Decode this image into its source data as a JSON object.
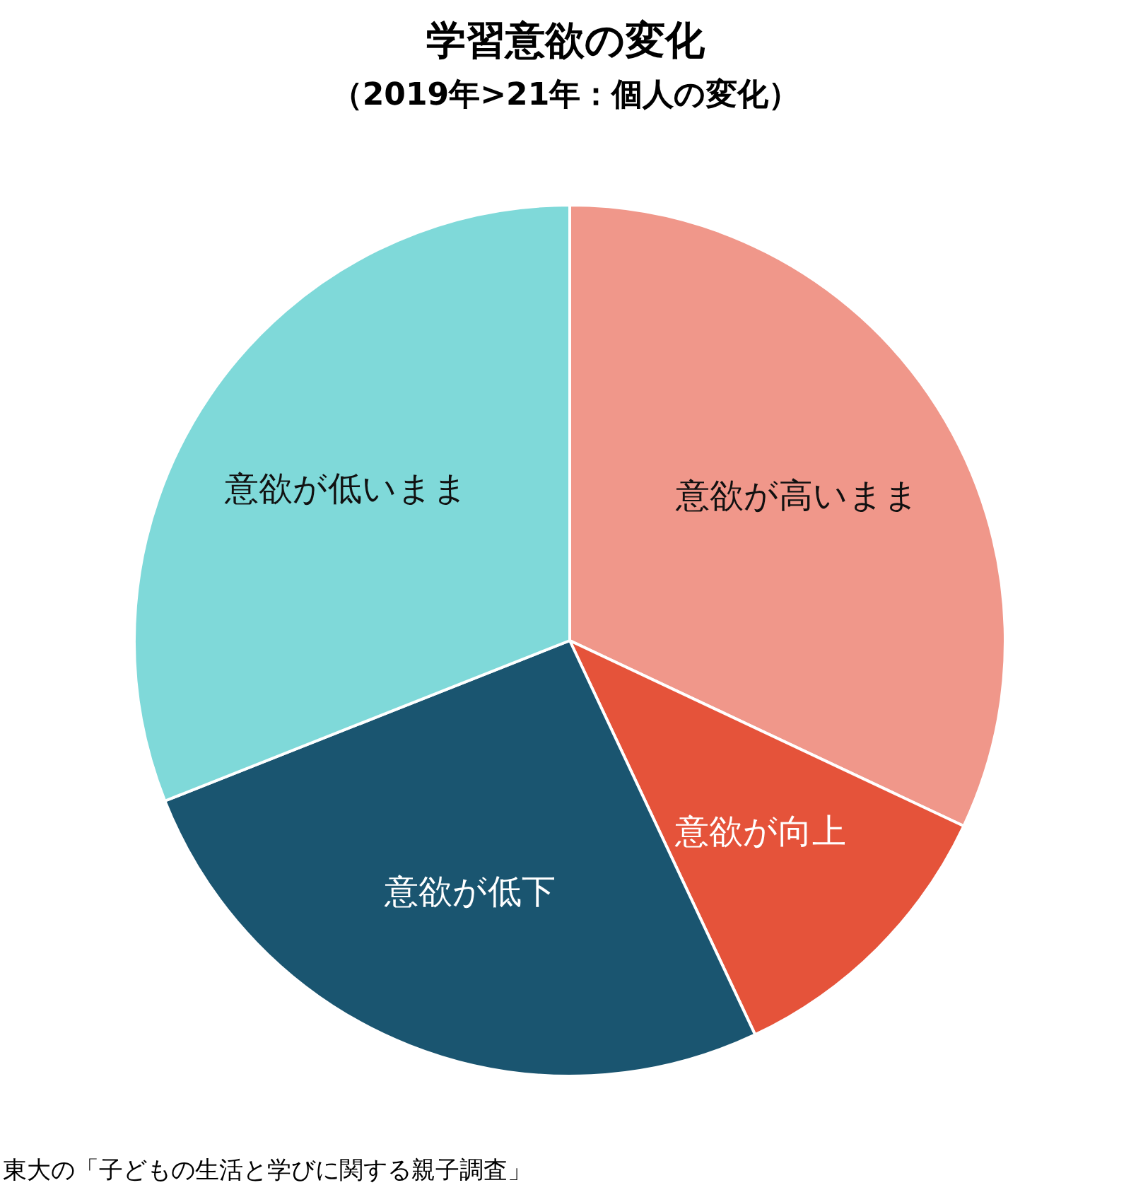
{
  "chart_data": {
    "type": "pie",
    "title": "学習意欲の変化",
    "subtitle": "（2019年>21年：個人の変化）",
    "categories": [
      "意欲が高いまま",
      "意欲が向上",
      "意欲が低下",
      "意欲が低いまま"
    ],
    "values": [
      32,
      11,
      26,
      31
    ],
    "colors": [
      "#f0978a",
      "#e5533a",
      "#1a5570",
      "#7fd9d9"
    ],
    "annotations": [
      "東大の「子どもの生活と学びに関する親子調査」"
    ],
    "legend": false
  }
}
